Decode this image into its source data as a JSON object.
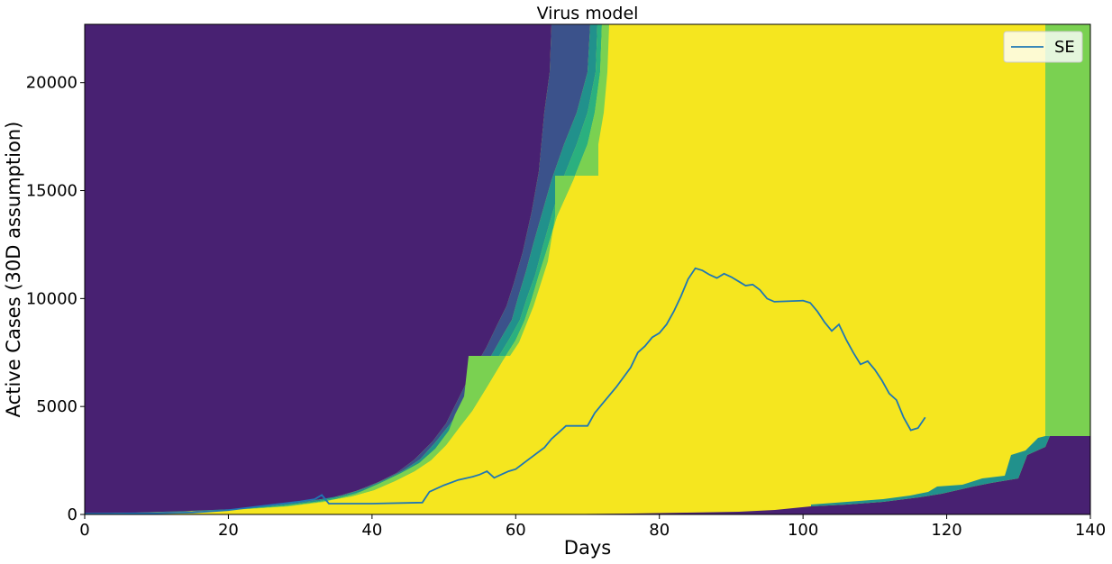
{
  "chart_data": {
    "type": "line",
    "title": "Virus model",
    "xlabel": "Days",
    "ylabel": "Active Cases (30D assumption)",
    "xlim": [
      0,
      140
    ],
    "ylim": [
      0,
      22700
    ],
    "xticks": [
      0,
      20,
      40,
      60,
      80,
      100,
      120,
      140
    ],
    "yticks": [
      0,
      5000,
      10000,
      15000,
      20000
    ],
    "grid": false,
    "legend": {
      "placement": "top-right",
      "entries": [
        "SE"
      ]
    },
    "background": {
      "kind": "colormap-heatmap",
      "palette": {
        "low": "#482172",
        "mid_low": "#3b528b",
        "mid": "#21918c",
        "mid_high": "#2ab07f",
        "high_mid": "#7ad151",
        "high": "#f5e61f"
      },
      "notes": "filled probability bands behind the line"
    },
    "series": [
      {
        "name": "SE",
        "color": "#1f77b4",
        "x": [
          0,
          10,
          15,
          20,
          25,
          30,
          32,
          33,
          34,
          40,
          47,
          48,
          50,
          52,
          54,
          55,
          56,
          57,
          58,
          59,
          60,
          62,
          64,
          65,
          66,
          67,
          68,
          70,
          71,
          72,
          74,
          76,
          77,
          78,
          79,
          80,
          81,
          82,
          83,
          84,
          85,
          86,
          87,
          88,
          89,
          90,
          91,
          92,
          93,
          94,
          95,
          96,
          100,
          101,
          102,
          103,
          104,
          105,
          106,
          107,
          108,
          109,
          110,
          111,
          112,
          113,
          114,
          115,
          116,
          117
        ],
        "y": [
          30,
          60,
          90,
          200,
          400,
          600,
          700,
          900,
          500,
          500,
          550,
          1050,
          1350,
          1600,
          1750,
          1850,
          2000,
          1700,
          1850,
          2000,
          2100,
          2600,
          3100,
          3500,
          3800,
          4100,
          4100,
          4100,
          4700,
          5100,
          5900,
          6800,
          7500,
          7800,
          8200,
          8400,
          8800,
          9400,
          10100,
          10900,
          11400,
          11300,
          11100,
          10950,
          11150,
          11000,
          10800,
          10600,
          10650,
          10400,
          10000,
          9850,
          9900,
          9800,
          9400,
          8900,
          8500,
          8800,
          8100,
          7500,
          6950,
          7100,
          6700,
          6200,
          5600,
          5300,
          4500,
          3900,
          4000,
          4500
        ]
      }
    ]
  }
}
